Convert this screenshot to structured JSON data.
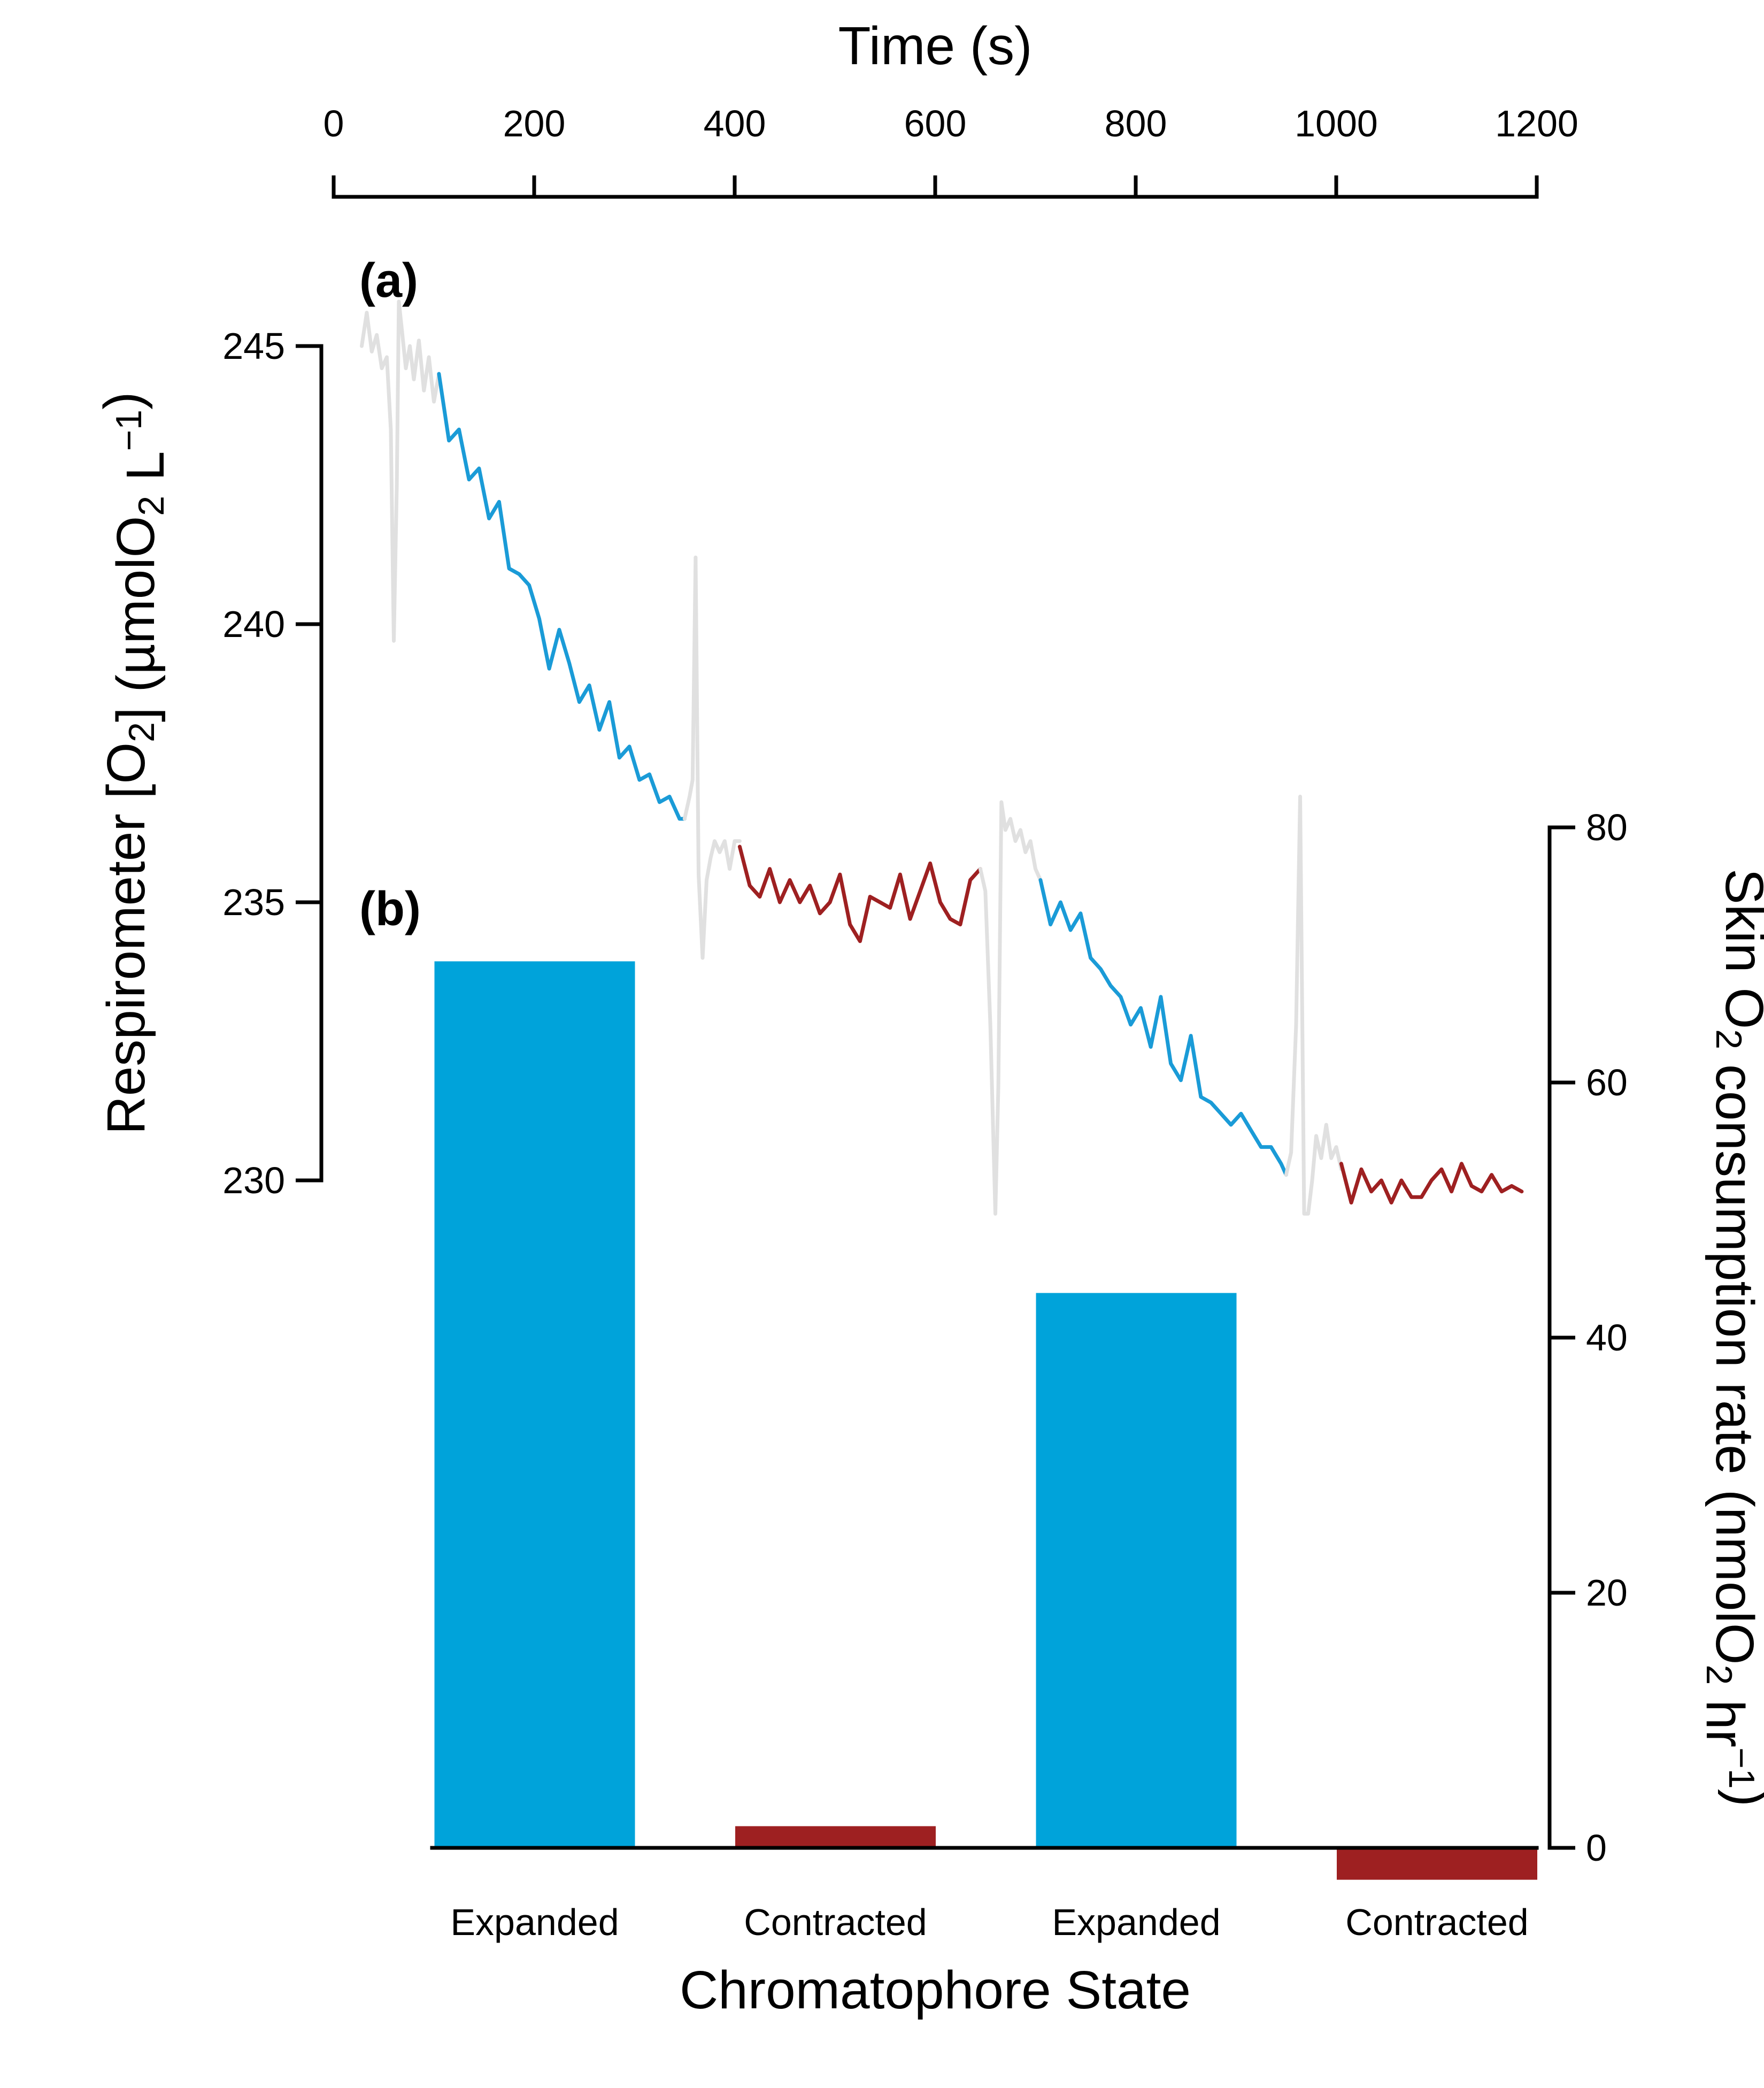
{
  "chart_data": [
    {
      "panel": "(a)",
      "type": "line",
      "xlabel": "Time (s)",
      "ylabel": {
        "main": "Respirometer [O",
        "sub1": "2",
        "mid": "] (µmolO",
        "sub2": "2",
        "unit": " L",
        "sup": "−1",
        "end": ")"
      },
      "x_ticks": [
        0,
        200,
        400,
        600,
        800,
        1000,
        1200
      ],
      "y_ticks": [
        230,
        235,
        240,
        245
      ],
      "xlim": [
        0,
        1200
      ],
      "ylim": [
        230,
        245
      ],
      "colors": {
        "transition": "#e0e0e0",
        "expanded": "#1a9bd7",
        "contracted": "#9e2021"
      },
      "series": [
        {
          "state": "transition",
          "x": [
            28,
            33,
            38,
            43,
            48,
            53,
            57,
            60,
            63,
            65,
            68,
            72,
            76,
            80,
            85,
            90,
            95,
            100,
            105
          ],
          "y": [
            245.0,
            245.6,
            244.9,
            245.2,
            244.6,
            244.8,
            243.5,
            239.7,
            242.5,
            245.8,
            245.3,
            244.6,
            245.0,
            244.4,
            245.1,
            244.2,
            244.8,
            244.0,
            244.5
          ]
        },
        {
          "state": "expanded",
          "x": [
            105,
            115,
            125,
            135,
            145,
            155,
            165,
            175,
            185,
            195,
            205,
            215,
            225,
            235,
            245,
            255,
            265,
            275,
            285,
            295,
            305,
            315,
            325,
            335,
            345,
            350
          ],
          "y": [
            244.5,
            243.3,
            243.5,
            242.6,
            242.8,
            241.9,
            242.2,
            241.0,
            240.9,
            240.7,
            240.1,
            239.2,
            239.9,
            239.3,
            238.6,
            238.9,
            238.1,
            238.6,
            237.6,
            237.8,
            237.2,
            237.3,
            236.8,
            236.9,
            236.5,
            236.5
          ]
        },
        {
          "state": "transition",
          "x": [
            350,
            355,
            358,
            361,
            364,
            368,
            372,
            376,
            380,
            385,
            390,
            395,
            400,
            405
          ],
          "y": [
            236.5,
            236.9,
            237.2,
            241.2,
            235.5,
            234.0,
            235.4,
            235.8,
            236.1,
            235.9,
            236.1,
            235.6,
            236.1,
            236.1
          ]
        },
        {
          "state": "contracted",
          "x": [
            405,
            415,
            425,
            435,
            445,
            455,
            465,
            475,
            485,
            495,
            505,
            515,
            525,
            535,
            545,
            555,
            565,
            575,
            585,
            595,
            605,
            615,
            625,
            635,
            645
          ],
          "y": [
            236.0,
            235.3,
            235.1,
            235.6,
            235.0,
            235.4,
            235.0,
            235.3,
            234.8,
            235.0,
            235.5,
            234.6,
            234.3,
            235.1,
            235.0,
            234.9,
            235.5,
            234.7,
            235.2,
            235.7,
            235.0,
            234.7,
            234.6,
            235.4,
            235.6
          ]
        },
        {
          "state": "transition",
          "x": [
            645,
            650,
            655,
            660,
            663,
            666,
            670,
            675,
            680,
            685,
            690,
            695,
            700,
            705
          ],
          "y": [
            235.6,
            235.2,
            232.8,
            229.4,
            231.7,
            236.8,
            236.3,
            236.5,
            236.1,
            236.3,
            235.9,
            236.1,
            235.6,
            235.4
          ]
        },
        {
          "state": "expanded",
          "x": [
            705,
            715,
            725,
            735,
            745,
            755,
            765,
            775,
            785,
            795,
            805,
            815,
            825,
            835,
            845,
            855,
            865,
            875,
            885,
            895,
            905,
            915,
            925,
            935,
            945,
            950
          ],
          "y": [
            235.4,
            234.6,
            235.0,
            234.5,
            234.8,
            234.0,
            233.8,
            233.5,
            233.3,
            232.8,
            233.1,
            232.4,
            233.3,
            232.1,
            231.8,
            232.6,
            231.5,
            231.4,
            231.2,
            231.0,
            231.2,
            230.9,
            230.6,
            230.6,
            230.3,
            230.1
          ]
        },
        {
          "state": "transition",
          "x": [
            950,
            955,
            960,
            964,
            968,
            972,
            976,
            980,
            985,
            990,
            995,
            1000,
            1005
          ],
          "y": [
            230.1,
            230.5,
            232.8,
            236.9,
            229.4,
            229.4,
            230.0,
            230.8,
            230.4,
            231.0,
            230.4,
            230.6,
            230.2
          ]
        },
        {
          "state": "contracted",
          "x": [
            1005,
            1015,
            1025,
            1035,
            1045,
            1055,
            1065,
            1075,
            1085,
            1095,
            1105,
            1115,
            1125,
            1135,
            1145,
            1155,
            1165,
            1175,
            1185
          ],
          "y": [
            230.3,
            229.6,
            230.2,
            229.8,
            230.0,
            229.6,
            230.0,
            229.7,
            229.7,
            230.0,
            230.2,
            229.8,
            230.3,
            229.9,
            229.8,
            230.1,
            229.8,
            229.9,
            229.8
          ]
        }
      ]
    },
    {
      "panel": "(b)",
      "type": "bar",
      "xlabel": "Chromatophore State",
      "ylabel": {
        "main": "Skin O",
        "sub1": "2",
        "mid": " consumption rate (nmolO",
        "sub2": "2",
        "unit": " hr",
        "sup": "−1",
        "end": ")"
      },
      "categories": [
        "Expanded",
        "Contracted",
        "Expanded",
        "Contracted"
      ],
      "values": [
        69.5,
        1.7,
        43.5,
        -2.5
      ],
      "bar_colors": [
        "#00a3da",
        "#9e2021",
        "#00a3da",
        "#9e2021"
      ],
      "y_ticks": [
        0,
        20,
        40,
        60,
        80
      ],
      "ylim": [
        0,
        80
      ]
    }
  ]
}
